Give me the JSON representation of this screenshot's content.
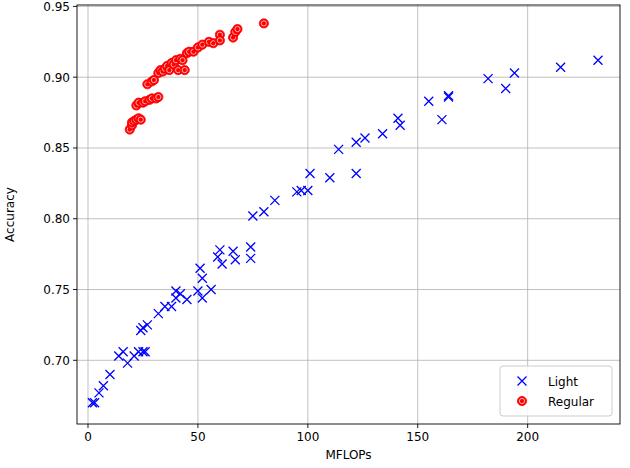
{
  "chart_data": {
    "type": "scatter",
    "x_label": "MFLOPs",
    "y_label": "Accuracy",
    "xlim": [
      -5,
      242
    ],
    "ylim": [
      0.655,
      0.951
    ],
    "xticks": [
      0,
      50,
      100,
      150,
      200
    ],
    "yticks": [
      {
        "value": 0.7,
        "label": "0.70"
      },
      0.75,
      {
        "value": 0.8,
        "label": "0.80"
      },
      0.85,
      {
        "value": 0.9,
        "label": "0.90"
      },
      0.95
    ],
    "grid": true,
    "legend": "lower right",
    "series": [
      {
        "name": "Light",
        "color": "#0000ff",
        "marker": "x",
        "x": [
          2,
          3,
          5,
          7,
          10,
          14,
          16,
          18,
          21,
          23,
          24,
          25,
          26,
          27,
          25,
          32,
          35,
          38,
          40,
          40,
          42,
          45,
          50,
          51,
          52,
          52,
          56,
          59,
          60,
          61,
          66,
          67,
          74,
          74,
          75,
          80,
          85,
          95,
          97,
          100,
          101,
          110,
          114,
          122,
          122,
          126,
          134,
          141,
          142,
          155,
          161,
          164,
          164,
          182,
          190,
          194,
          215,
          232
        ],
        "values": [
          0.67,
          0.67,
          0.677,
          0.682,
          0.69,
          0.703,
          0.706,
          0.698,
          0.703,
          0.706,
          0.721,
          0.706,
          0.706,
          0.725,
          0.723,
          0.733,
          0.738,
          0.738,
          0.744,
          0.749,
          0.747,
          0.743,
          0.749,
          0.765,
          0.758,
          0.744,
          0.75,
          0.773,
          0.778,
          0.768,
          0.777,
          0.771,
          0.78,
          0.772,
          0.802,
          0.805,
          0.813,
          0.819,
          0.82,
          0.82,
          0.832,
          0.829,
          0.849,
          0.854,
          0.832,
          0.857,
          0.86,
          0.871,
          0.866,
          0.883,
          0.87,
          0.887,
          0.886,
          0.899,
          0.892,
          0.903,
          0.907,
          0.912
        ]
      },
      {
        "name": "Regular",
        "color": "#ff0000",
        "marker": "o",
        "x": [
          19,
          20,
          20,
          21,
          22,
          23,
          24,
          22,
          23,
          25,
          26,
          28,
          29,
          31,
          32,
          27,
          29,
          30,
          32,
          33,
          34,
          35,
          36,
          37,
          38,
          39,
          40,
          41,
          42,
          43,
          44,
          45,
          46,
          48,
          50,
          52,
          55,
          57,
          60,
          60,
          66,
          67,
          68,
          80
        ],
        "values": [
          0.863,
          0.866,
          0.868,
          0.869,
          0.87,
          0.871,
          0.87,
          0.88,
          0.882,
          0.882,
          0.883,
          0.884,
          0.885,
          0.885,
          0.886,
          0.895,
          0.897,
          0.898,
          0.903,
          0.905,
          0.904,
          0.906,
          0.908,
          0.905,
          0.91,
          0.909,
          0.912,
          0.905,
          0.913,
          0.912,
          0.905,
          0.917,
          0.918,
          0.918,
          0.921,
          0.923,
          0.925,
          0.924,
          0.93,
          0.926,
          0.928,
          0.932,
          0.934,
          0.938
        ]
      }
    ]
  }
}
